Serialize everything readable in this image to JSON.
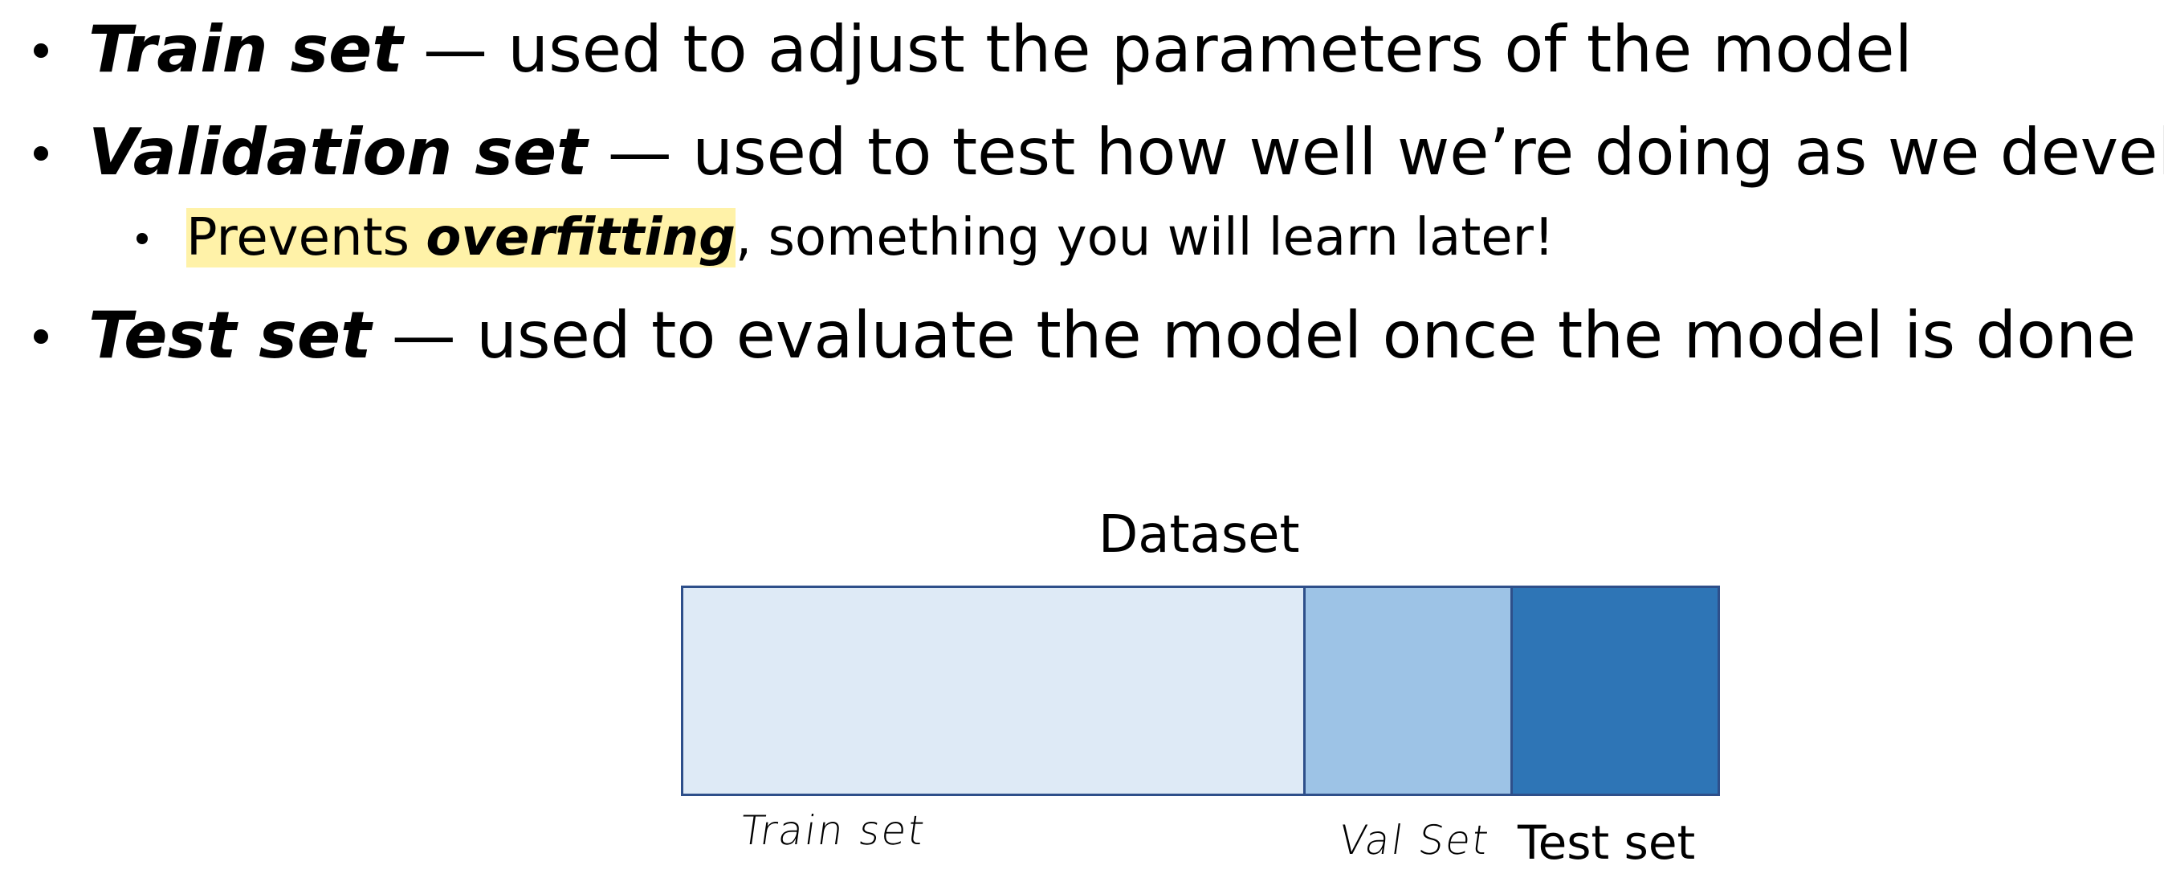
{
  "bullets": [
    {
      "term": "Train set",
      "dash": " — ",
      "desc": "used to adjust the parameters of the model"
    },
    {
      "term": "Validation set",
      "dash": " — ",
      "desc": "used to test how well we’re doing as we develop",
      "sub": {
        "highlight_prefix": "Prevents ",
        "highlight_term": "overfitting",
        "rest": ", something you will learn later!"
      }
    },
    {
      "term": "Test set",
      "dash": " — ",
      "desc": "used to evaluate the model once the model is done"
    }
  ],
  "diagram": {
    "title": "Dataset",
    "segments": [
      {
        "label": "Train set",
        "color": "#deeaf6",
        "fraction": 0.6
      },
      {
        "label": "Val Set",
        "color": "#9dc3e6",
        "fraction": 0.2
      },
      {
        "label": "Test set",
        "color": "#2e75b6",
        "fraction": 0.2
      }
    ],
    "border_color": "#2e4f8a",
    "highlight_color": "#fff2a8"
  }
}
